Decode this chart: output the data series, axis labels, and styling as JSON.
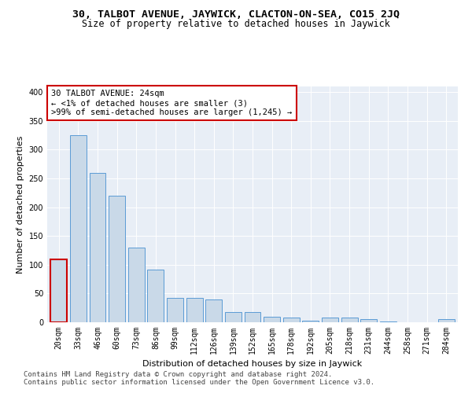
{
  "title": "30, TALBOT AVENUE, JAYWICK, CLACTON-ON-SEA, CO15 2JQ",
  "subtitle": "Size of property relative to detached houses in Jaywick",
  "xlabel": "Distribution of detached houses by size in Jaywick",
  "ylabel": "Number of detached properties",
  "categories": [
    "20sqm",
    "33sqm",
    "46sqm",
    "60sqm",
    "73sqm",
    "86sqm",
    "99sqm",
    "112sqm",
    "126sqm",
    "139sqm",
    "152sqm",
    "165sqm",
    "178sqm",
    "192sqm",
    "205sqm",
    "218sqm",
    "231sqm",
    "244sqm",
    "258sqm",
    "271sqm",
    "284sqm"
  ],
  "values": [
    110,
    325,
    260,
    220,
    130,
    92,
    43,
    43,
    40,
    18,
    18,
    10,
    8,
    3,
    8,
    8,
    5,
    2,
    0,
    0,
    5
  ],
  "bar_color": "#c9d9e8",
  "bar_edge_color": "#5b9bd5",
  "highlight_bar_index": 0,
  "highlight_bar_edge_color": "#cc0000",
  "annotation_line1": "30 TALBOT AVENUE: 24sqm",
  "annotation_line2": "← <1% of detached houses are smaller (3)",
  "annotation_line3": ">99% of semi-detached houses are larger (1,245) →",
  "annotation_box_edge_color": "#cc0000",
  "ylim": [
    0,
    410
  ],
  "yticks": [
    0,
    50,
    100,
    150,
    200,
    250,
    300,
    350,
    400
  ],
  "bg_color": "#e8eef6",
  "title_fontsize": 9.5,
  "subtitle_fontsize": 8.5,
  "axis_label_fontsize": 8,
  "tick_fontsize": 7,
  "annotation_fontsize": 7.5,
  "footer_fontsize": 6.5,
  "footer_line1": "Contains HM Land Registry data © Crown copyright and database right 2024.",
  "footer_line2": "Contains public sector information licensed under the Open Government Licence v3.0."
}
